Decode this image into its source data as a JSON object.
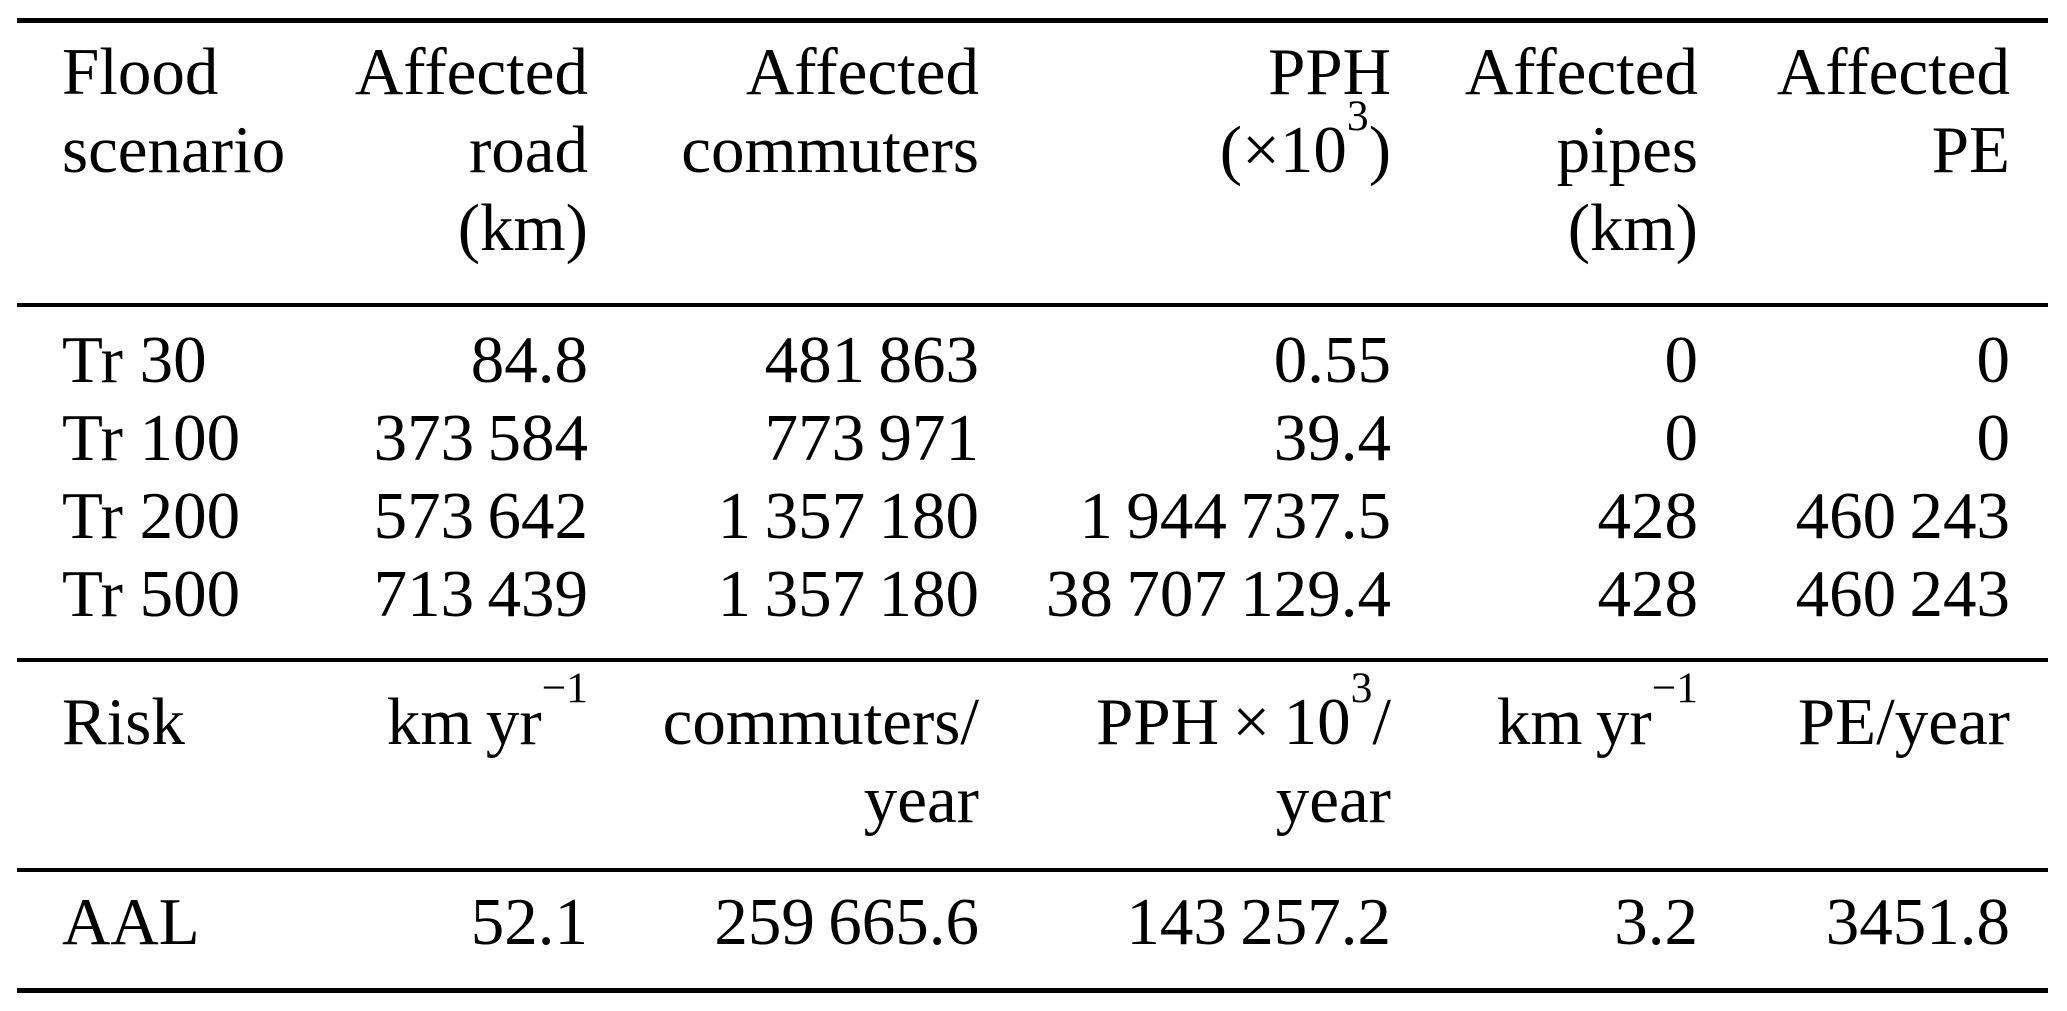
{
  "page": {
    "background": "#ffffff",
    "text_color": "#000000",
    "rule_color": "#000000"
  },
  "table": {
    "header": {
      "scenario_lines": [
        "Flood",
        "scenario"
      ],
      "road_lines": [
        "Affected",
        "road",
        "(km)"
      ],
      "commuters_lines": [
        "Affected",
        "commuters"
      ],
      "pph_line1": "PPH",
      "pph_line2_open": "(×10",
      "pph_line2_sup": "3",
      "pph_line2_close": ")",
      "pipes_lines": [
        "Affected",
        "pipes",
        "(km)"
      ],
      "pe_lines": [
        "Affected",
        "PE"
      ]
    },
    "scenario_rows": [
      {
        "scenario": "Tr 30",
        "road": "84.8",
        "commuters": "481 863",
        "pph": "0.55",
        "pipes": "0",
        "pe": "0"
      },
      {
        "scenario": "Tr 100",
        "road": "373 584",
        "commuters": "773 971",
        "pph": "39.4",
        "pipes": "0",
        "pe": "0"
      },
      {
        "scenario": "Tr 200",
        "road": "573 642",
        "commuters": "1 357 180",
        "pph": "1 944 737.5",
        "pipes": "428",
        "pe": "460 243"
      },
      {
        "scenario": "Tr 500",
        "road": "713 439",
        "commuters": "1 357 180",
        "pph": "38 707 129.4",
        "pipes": "428",
        "pe": "460 243"
      }
    ],
    "risk_units_row": {
      "label": "Risk",
      "road_base": "km yr",
      "road_sup": "−1",
      "commuters_line1": "commuters/",
      "commuters_line2": "year",
      "pph_base": "PPH × 10",
      "pph_sup": "3",
      "pph_slash": "/",
      "pph_line2": "year",
      "pipes_base": "km yr",
      "pipes_sup": "−1",
      "pe": "PE/year"
    },
    "aal_row": {
      "label": "AAL",
      "road": "52.1",
      "commuters": "259 665.6",
      "pph": "143 257.2",
      "pipes": "3.2",
      "pe": "3451.8"
    }
  }
}
